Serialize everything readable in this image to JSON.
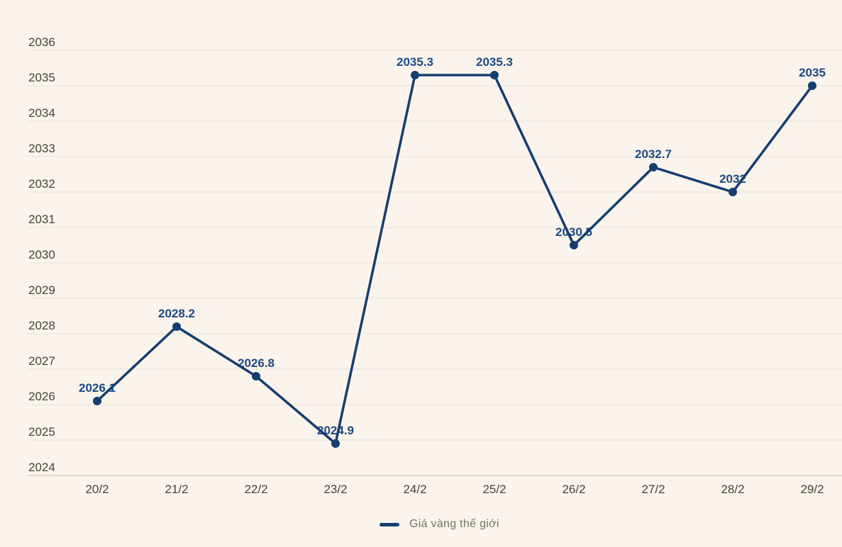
{
  "chart_data": {
    "type": "line",
    "title": "",
    "categories": [
      "20/2",
      "21/2",
      "22/2",
      "23/2",
      "24/2",
      "25/2",
      "26/2",
      "27/2",
      "28/2",
      "29/2"
    ],
    "series": [
      {
        "name": "Giá vàng thế giới",
        "values": [
          2026.1,
          2028.2,
          2026.8,
          2024.9,
          2035.3,
          2035.3,
          2030.5,
          2032.7,
          2032,
          2035
        ],
        "point_labels": [
          "2026.1",
          "2028.2",
          "2026.8",
          "2024.9",
          "2035.3",
          "2035.3",
          "2030.5",
          "2032.7",
          "2032",
          "2035"
        ]
      }
    ],
    "xlabel": "",
    "ylabel": "",
    "ylim": [
      2024,
      2036
    ],
    "ytick_step": 1,
    "yticks": [
      "2024",
      "2025",
      "2026",
      "2027",
      "2028",
      "2029",
      "2030",
      "2031",
      "2032",
      "2033",
      "2034",
      "2035",
      "2036"
    ],
    "grid": true,
    "legend_position": "bottom-center",
    "colors": {
      "background": "#faf4ec",
      "gridline": "#e8e3da",
      "axis_line": "#bfb9af",
      "tick_text": "#45413d",
      "line": "#153e70",
      "point": "#153e70",
      "data_label": "#1d4a84",
      "legend_text": "#76716d"
    }
  },
  "legend": {
    "items": [
      {
        "label": "Giá vàng thế giới"
      }
    ]
  }
}
